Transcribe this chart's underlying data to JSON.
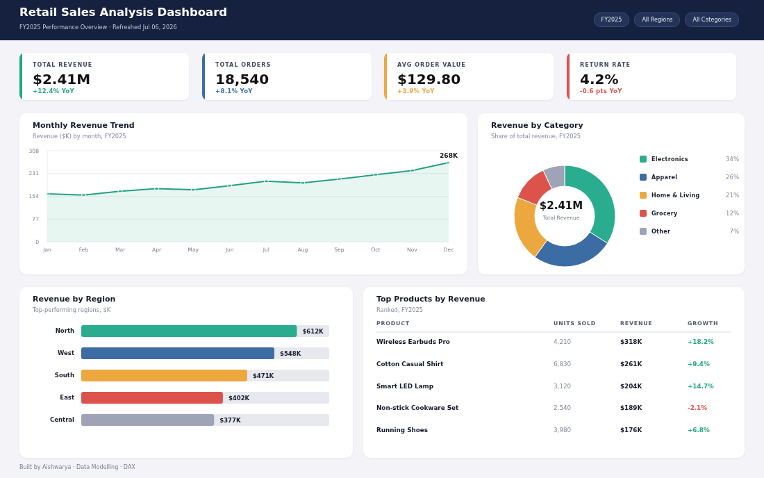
{
  "chart_data": [
    {
      "type": "other",
      "title": "Retail Sales Analysis Dashboard",
      "subtitle": "FY2025 Performance Overview · Refreshed Jul 06, 2026",
      "annotations": [
        "FY2025",
        "All Regions",
        "All Categories"
      ]
    },
    {
      "type": "other",
      "title": "TOTAL REVENUE",
      "annotations": [
        "$2.41M",
        "+12.4% YoY"
      ],
      "color": "#21a884"
    },
    {
      "type": "other",
      "title": "TOTAL ORDERS",
      "annotations": [
        "18,540",
        "+8.1% YoY"
      ],
      "color": "#3b6ea8"
    },
    {
      "type": "other",
      "title": "AVG ORDER VALUE",
      "annotations": [
        "$129.80",
        "+3.9% YoY"
      ],
      "color": "#eea83f"
    },
    {
      "type": "other",
      "title": "RETURN RATE",
      "annotations": [
        "4.2%",
        "-0.6 pts YoY"
      ],
      "color": "#e0504a"
    },
    {
      "type": "area",
      "title": "Monthly Revenue Trend",
      "subtitle": "Revenue ($K) by month, FY2025",
      "categories": [
        "Jan",
        "Feb",
        "Mar",
        "Apr",
        "May",
        "Jun",
        "Jul",
        "Aug",
        "Sep",
        "Oct",
        "Nov",
        "Dec"
      ],
      "values": [
        162,
        158,
        171,
        180,
        176,
        190,
        205,
        199,
        212,
        227,
        241,
        268
      ],
      "value_labels": [
        null,
        null,
        null,
        null,
        null,
        null,
        null,
        null,
        null,
        null,
        null,
        "268K"
      ],
      "color": "#1fa37f",
      "ylim": [
        0,
        308
      ],
      "yticks": [
        0,
        77,
        154,
        231,
        308
      ],
      "grid": "y",
      "marker": "circle"
    },
    {
      "type": "donut",
      "title": "Revenue by Category",
      "subtitle": "Share of total revenue, FY2025",
      "categories": [
        "Electronics",
        "Apparel",
        "Home & Living",
        "Grocery",
        "Other"
      ],
      "values": [
        34,
        26,
        21,
        12,
        7
      ],
      "colors": [
        "#2aac8f",
        "#3b6ca3",
        "#eda73f",
        "#dd534b",
        "#9ea3b6"
      ],
      "value_labels": [
        "34%",
        "26%",
        "21%",
        "12%",
        "7%"
      ],
      "annotations": [
        "$2.41M",
        "Total Revenue"
      ],
      "legend": "right"
    },
    {
      "type": "bar",
      "orientation": "horizontal",
      "title": "Revenue by Region",
      "subtitle": "Top-performing regions, $K",
      "categories": [
        "North",
        "West",
        "South",
        "East",
        "Central"
      ],
      "values": [
        612,
        548,
        471,
        402,
        377
      ],
      "colors": [
        "#2aac8f",
        "#3b6ca3",
        "#eda73f",
        "#dd534b",
        "#9ea3b6"
      ],
      "value_labels": [
        "$612K",
        "$548K",
        "$471K",
        "$402K",
        "$377K"
      ],
      "tick_labels": "y"
    },
    {
      "type": "other",
      "title": "Top Products by Revenue",
      "subtitle": "Ranked, FY2025",
      "categories": [
        "PRODUCT",
        "UNITS SOLD",
        "REVENUE",
        "GROWTH"
      ],
      "y_categories": [
        "Wireless Earbuds Pro",
        "Cotton Casual Shirt",
        "Smart LED Lamp",
        "Non-stick Cookware Set",
        "Running Shoes"
      ],
      "cell_labels": [
        [
          "4,210",
          "$318K",
          "+18.2%"
        ],
        [
          "6,830",
          "$261K",
          "+9.4%"
        ],
        [
          "3,120",
          "$204K",
          "+14.7%"
        ],
        [
          "2,540",
          "$189K",
          "-2.1%"
        ],
        [
          "3,980",
          "$176K",
          "+6.8%"
        ]
      ]
    },
    {
      "type": "other",
      "annotations": [
        "Built by Aishwarya · Data Modelling · DAX"
      ]
    }
  ]
}
